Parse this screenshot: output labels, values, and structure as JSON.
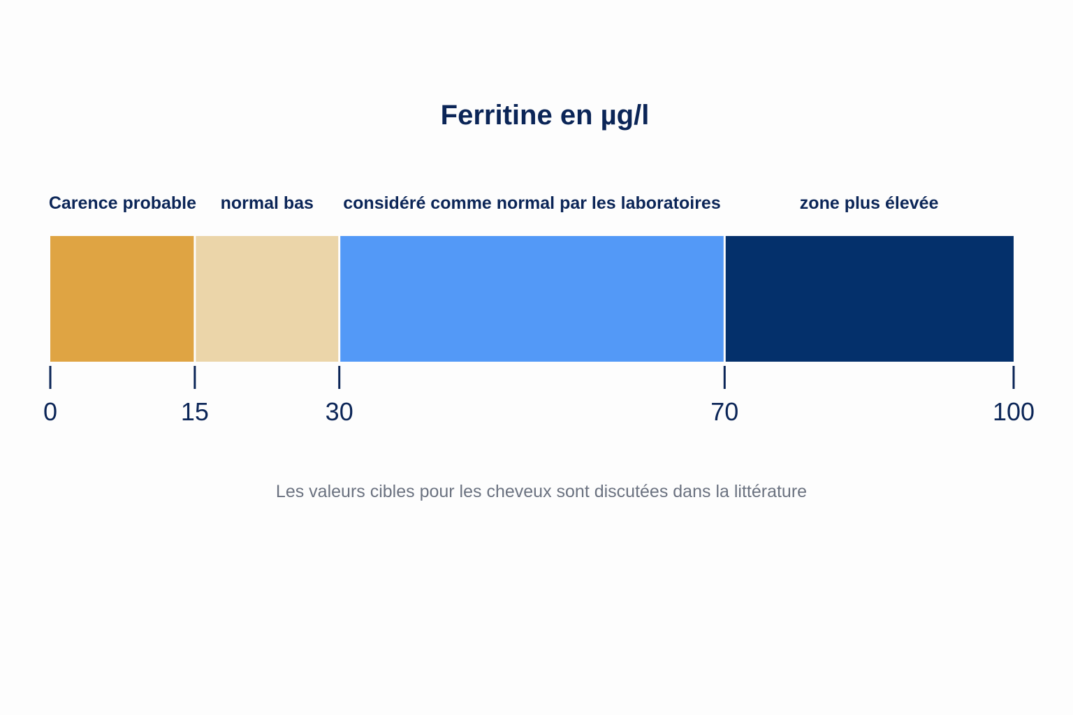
{
  "chart_data": {
    "type": "bar",
    "title": "Ferritine en µg/l",
    "xlim": [
      0,
      100
    ],
    "ticks": [
      0,
      15,
      30,
      70,
      100
    ],
    "tick_labels": [
      "0",
      "15",
      "30",
      "70",
      "100"
    ],
    "segments": [
      {
        "label": "Carence probable",
        "start": 0,
        "end": 15,
        "color": "#dfa443"
      },
      {
        "label": "normal bas",
        "start": 15,
        "end": 30,
        "color": "#ebd5a9"
      },
      {
        "label": "considéré comme normal par les laboratoires",
        "start": 30,
        "end": 70,
        "color": "#5399f7"
      },
      {
        "label": "zone plus élevée",
        "start": 70,
        "end": 100,
        "color": "#04306b"
      }
    ],
    "footnote": "Les valeurs cibles pour les cheveux sont discutées dans la littérature",
    "grid": false
  }
}
